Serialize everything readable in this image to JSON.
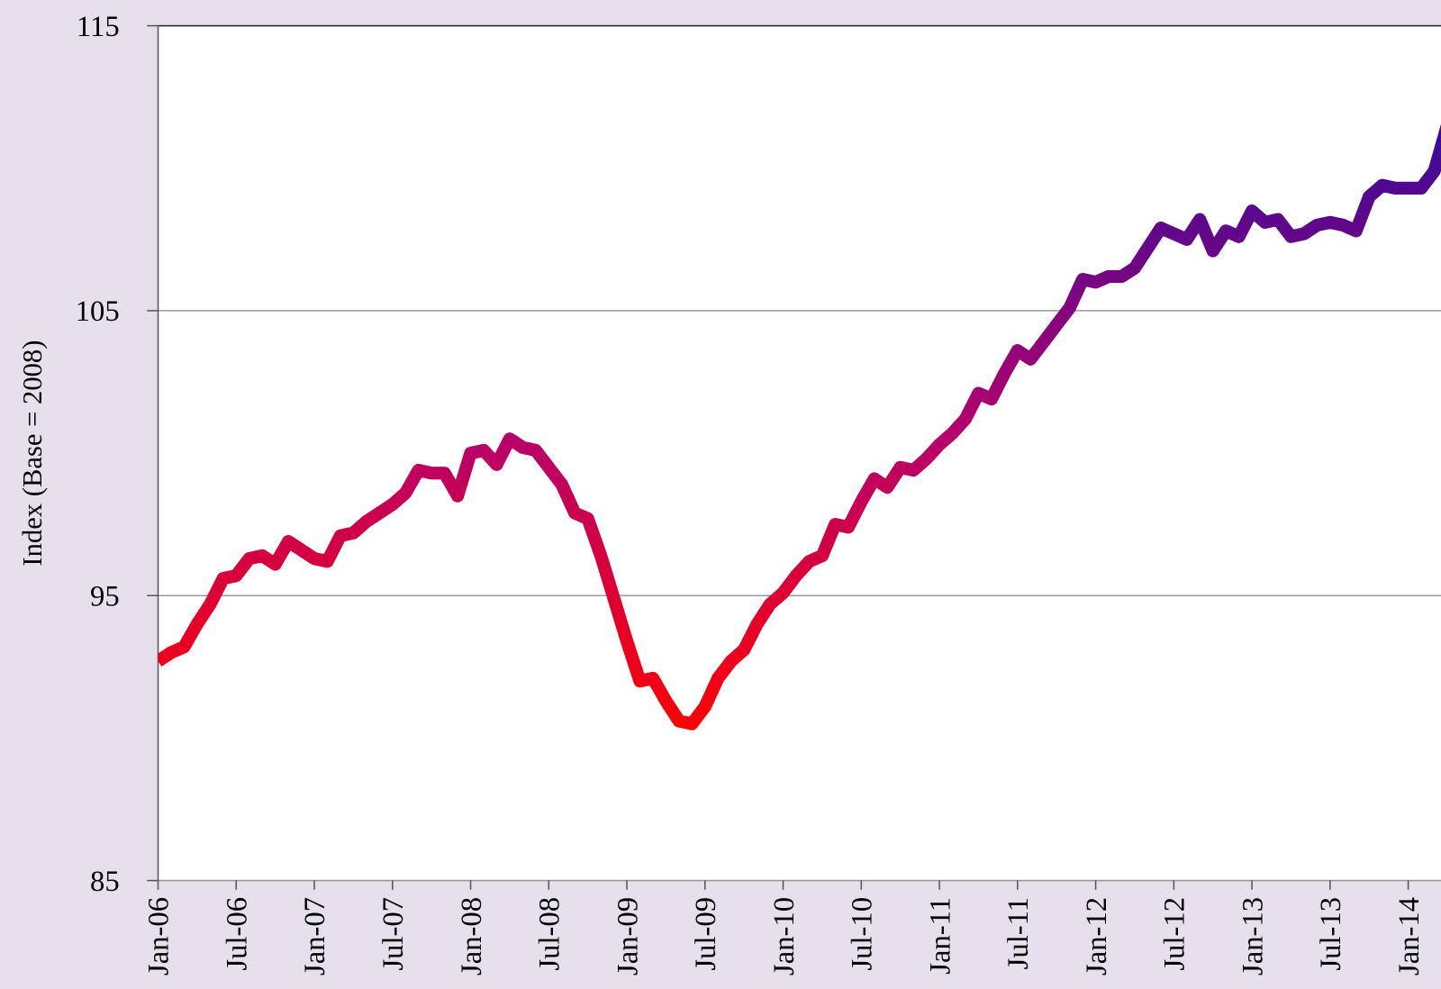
{
  "chart_data": {
    "type": "line",
    "y_label": "Index (Base = 2008)",
    "categories": [
      "Jan-06",
      null,
      null,
      null,
      null,
      null,
      "Jul-06",
      null,
      null,
      null,
      null,
      null,
      "Jan-07",
      null,
      null,
      null,
      null,
      null,
      "Jul-07",
      null,
      null,
      null,
      null,
      null,
      "Jan-08",
      null,
      null,
      null,
      null,
      null,
      "Jul-08",
      null,
      null,
      null,
      null,
      null,
      "Jan-09",
      null,
      null,
      null,
      null,
      null,
      "Jul-09",
      null,
      null,
      null,
      null,
      null,
      "Jan-10",
      null,
      null,
      null,
      null,
      null,
      "Jul-10",
      null,
      null,
      null,
      null,
      null,
      "Jan-11",
      null,
      null,
      null,
      null,
      null,
      "Jul-11",
      null,
      null,
      null,
      null,
      null,
      "Jan-12",
      null,
      null,
      null,
      null,
      null,
      "Jul-12",
      null,
      null,
      null,
      null,
      null,
      "Jan-13",
      null,
      null,
      null,
      null,
      null,
      "Jul-13",
      null,
      null,
      null,
      null,
      null,
      "Jan-14",
      null,
      null,
      null
    ],
    "values": [
      92.7,
      93.0,
      93.2,
      94.0,
      94.7,
      95.6,
      95.7,
      96.3,
      96.4,
      96.1,
      96.9,
      96.6,
      96.3,
      96.2,
      97.1,
      97.2,
      97.6,
      97.9,
      98.2,
      98.6,
      99.4,
      99.3,
      99.3,
      98.5,
      100.0,
      100.1,
      99.6,
      100.5,
      100.2,
      100.1,
      99.5,
      98.9,
      97.9,
      97.7,
      96.4,
      94.9,
      93.4,
      92.0,
      92.1,
      91.3,
      90.6,
      90.5,
      91.1,
      92.1,
      92.7,
      93.1,
      94.0,
      94.7,
      95.1,
      95.7,
      96.2,
      96.4,
      97.5,
      97.4,
      98.3,
      99.1,
      98.8,
      99.5,
      99.4,
      99.8,
      100.3,
      100.7,
      101.2,
      102.1,
      101.9,
      102.8,
      103.6,
      103.3,
      103.9,
      104.5,
      105.1,
      106.1,
      106.0,
      106.2,
      106.2,
      106.5,
      107.2,
      107.9,
      107.7,
      107.5,
      108.2,
      107.1,
      107.8,
      107.6,
      108.5,
      108.1,
      108.2,
      107.6,
      107.7,
      108.0,
      108.1,
      108.0,
      107.8,
      109.0,
      109.4,
      109.3,
      109.3,
      109.3,
      109.9,
      111.5
    ],
    "gradient_colors": [
      "#ff0000",
      "#b8006a",
      "#3c0a98"
    ],
    "ylim": [
      85,
      115
    ],
    "yticks": [
      85,
      95,
      105,
      115
    ],
    "grid": true
  }
}
